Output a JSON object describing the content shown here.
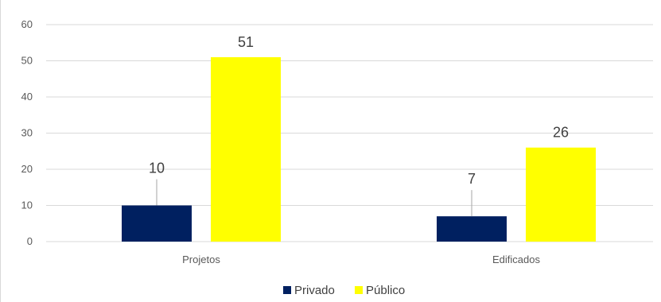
{
  "chart_data": {
    "type": "bar",
    "categories": [
      "Projetos",
      "Edificados"
    ],
    "series": [
      {
        "name": "Privado",
        "values": [
          10,
          7
        ],
        "color": "#002060"
      },
      {
        "name": "Público",
        "values": [
          51,
          26
        ],
        "color": "#FFFF00"
      }
    ],
    "title": "",
    "xlabel": "",
    "ylabel": "",
    "ylim": [
      0,
      60
    ],
    "yticks": [
      0,
      10,
      20,
      30,
      40,
      50,
      60
    ],
    "grid": true,
    "gridline_color": "#d9d9d9",
    "legend_position": "bottom",
    "data_labels": true
  }
}
